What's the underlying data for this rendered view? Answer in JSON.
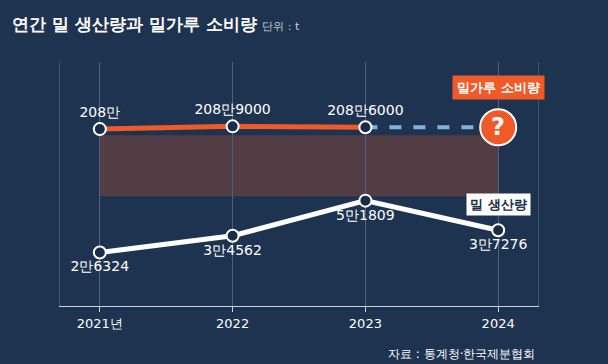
{
  "chart_data": {
    "type": "line",
    "title": "연간 밀 생산량과 밀가루 소비량",
    "subtitle": "단위 : t",
    "source": "자료 : 통계청·한국제분협회",
    "categories": [
      "2021년",
      "2022",
      "2023",
      "2024"
    ],
    "series": [
      {
        "name": "밀가루 소비량",
        "color": "#f05a28",
        "axis": "y",
        "marker": "circle",
        "values": [
          2080000,
          2089000,
          2086000,
          null
        ],
        "value_labels": [
          "208만",
          "208만9000",
          "208만6000",
          null
        ]
      },
      {
        "name": "밀 생산량",
        "color": "#ffffff",
        "axis": "y2",
        "marker": "circle",
        "values": [
          26324,
          34562,
          51809,
          37276
        ],
        "value_labels": [
          "2만6324",
          "3만4562",
          "5만1809",
          "3만7276"
        ]
      }
    ],
    "ylim": [
      1500000,
      2300000
    ],
    "y2lim": [
      0,
      120000
    ],
    "annotations": [
      {
        "x": "2024",
        "text": "?"
      }
    ],
    "data_labels": true,
    "tick_labels": "x",
    "grid": true
  }
}
